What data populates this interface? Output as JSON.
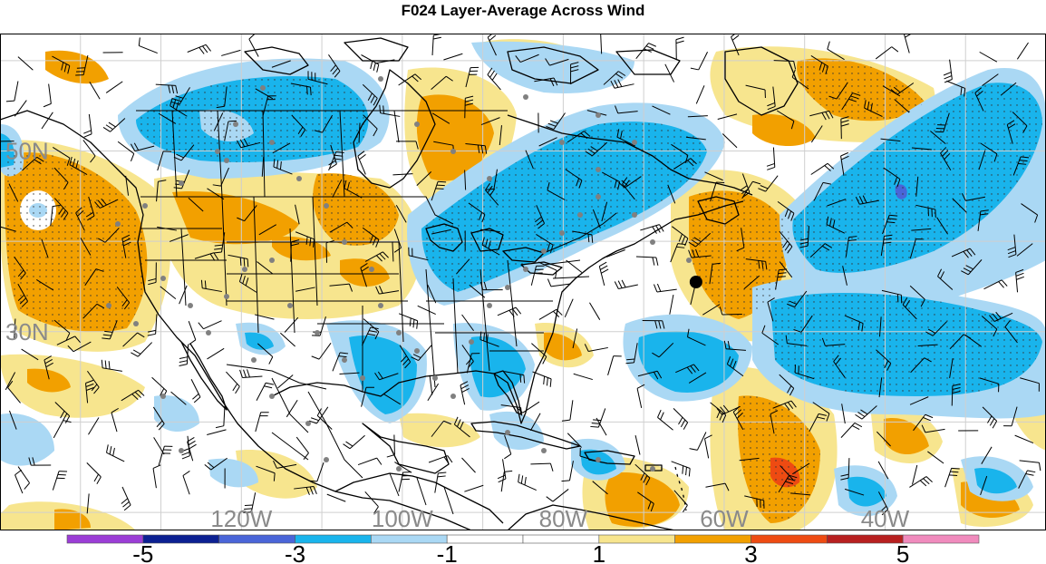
{
  "title": "F024 Layer-Average Across Wind",
  "map": {
    "projection": "cylindrical equidistant",
    "lon_range": [
      -150,
      -20
    ],
    "lat_range": [
      8,
      63
    ],
    "grid_spacing_deg": 10,
    "lat_labels": [
      {
        "lat": 50,
        "text": "50N"
      },
      {
        "lat": 30,
        "text": "30N"
      }
    ],
    "lon_labels": [
      {
        "lon": -120,
        "text": "120W"
      },
      {
        "lon": -100,
        "text": "100W"
      },
      {
        "lon": -80,
        "text": "80W"
      },
      {
        "lon": -60,
        "text": "60W"
      },
      {
        "lon": -40,
        "text": "40W"
      }
    ],
    "marker": {
      "lon": -63.5,
      "lat": 35.5,
      "color": "#000000"
    },
    "colors": {
      "positive_light": "#f7e58e",
      "positive_medium": "#f2a000",
      "positive_strong": "#ee4b12",
      "negative_light": "#aad8f4",
      "negative_medium": "#19b4ec",
      "negative_strong": "#4a65d8",
      "coastline": "#000000",
      "grid": "#cfcfcf",
      "station": "#808080",
      "barb": "#000000"
    }
  },
  "colorbar": {
    "boundaries": [
      -6,
      -5,
      -4,
      -3,
      -2,
      -1,
      0,
      1,
      2,
      3,
      4,
      5,
      6
    ],
    "colors": [
      "#9b3dd6",
      "#0c2092",
      "#4a65d8",
      "#19b4ec",
      "#aad8f4",
      "#ffffff",
      "#ffffff",
      "#f7e58e",
      "#f2a000",
      "#ee4b12",
      "#b82020",
      "#f08bbd"
    ],
    "tick_labels": [
      {
        "value": -5,
        "text": "-5"
      },
      {
        "value": -3,
        "text": "-3"
      },
      {
        "value": -1,
        "text": "-1"
      },
      {
        "value": 1,
        "text": "1"
      },
      {
        "value": 3,
        "text": "3"
      },
      {
        "value": 5,
        "text": "5"
      }
    ]
  }
}
